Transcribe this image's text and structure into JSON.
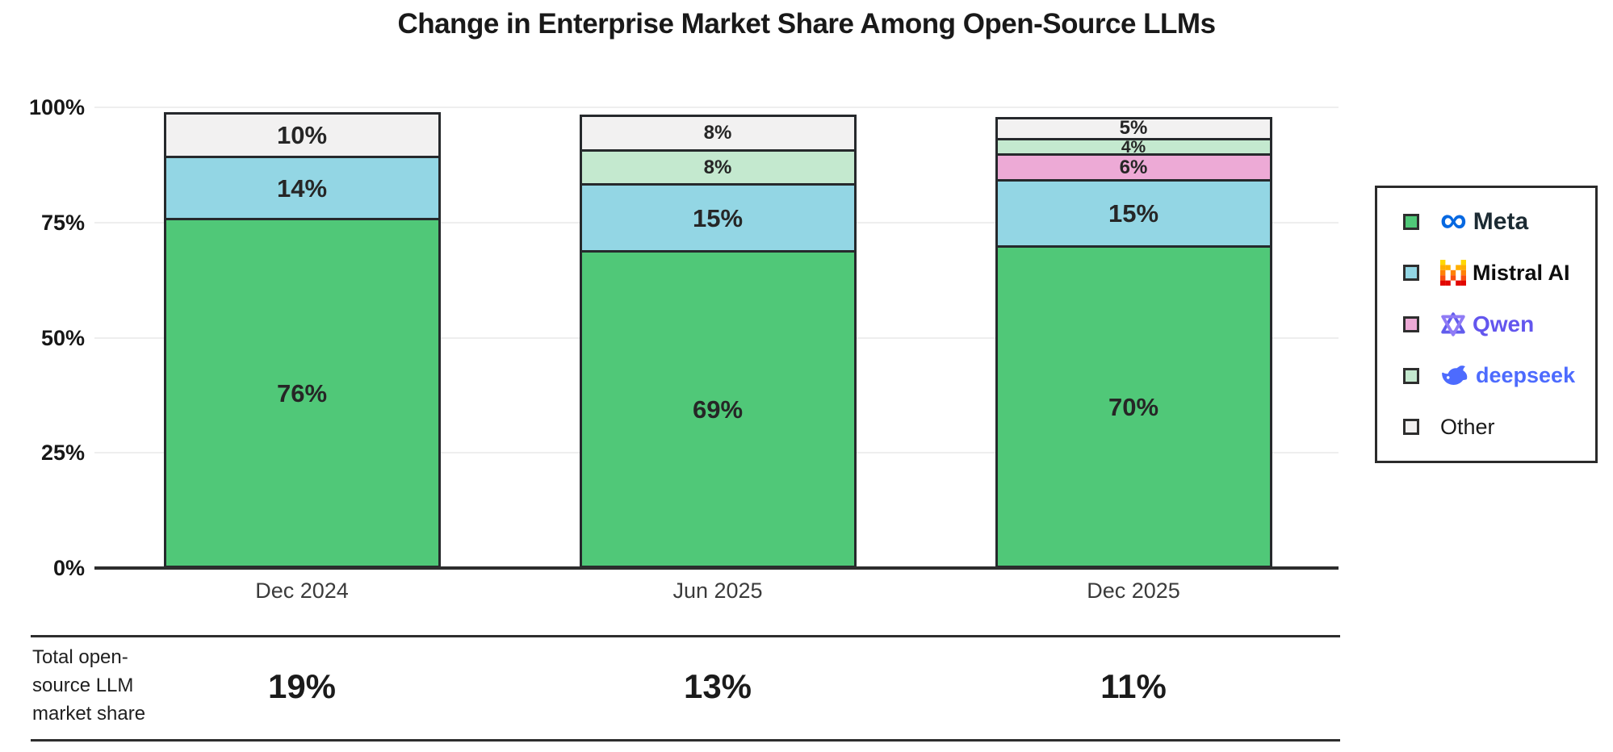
{
  "title": "Change in Enterprise Market Share Among Open-Source LLMs",
  "chart_data": {
    "type": "bar",
    "stacked": true,
    "title": "Change in Enterprise Market Share Among Open-Source LLMs",
    "categories": [
      "Dec 2024",
      "Jun 2025",
      "Dec 2025"
    ],
    "series": [
      {
        "name": "Meta",
        "color": "#50c878",
        "values": [
          76,
          69,
          70
        ]
      },
      {
        "name": "Mistral AI",
        "color": "#93d6e4",
        "values": [
          14,
          15,
          15
        ]
      },
      {
        "name": "Qwen",
        "color": "#edaad6",
        "values": [
          0,
          0,
          6
        ]
      },
      {
        "name": "deepseek",
        "color": "#c4e9cf",
        "values": [
          0,
          8,
          4
        ]
      },
      {
        "name": "Other",
        "color": "#f2f1f1",
        "values": [
          10,
          8,
          5
        ]
      }
    ],
    "value_suffix": "%",
    "ylim": [
      0,
      100
    ],
    "yticks": [
      {
        "label": "0%",
        "value": 0
      },
      {
        "label": "25%",
        "value": 25
      },
      {
        "label": "50%",
        "value": 50
      },
      {
        "label": "75%",
        "value": 75
      },
      {
        "label": "100%",
        "value": 100
      }
    ],
    "grid": true,
    "legend_position": "right"
  },
  "legend": {
    "items": [
      {
        "label": "Meta",
        "swatch": "#50c878",
        "text_color": "#1c2b33",
        "font_size": 30,
        "font_weight": 700,
        "icon": "meta-infinity-icon"
      },
      {
        "label": "Mistral AI",
        "swatch": "#93d6e4",
        "text_color": "#0d0d0d",
        "font_size": 27,
        "font_weight": 800,
        "icon": "mistral-m-icon"
      },
      {
        "label": "Qwen",
        "swatch": "#edaad6",
        "text_color": "#6356ee",
        "font_size": 28,
        "font_weight": 700,
        "icon": "qwen-knot-icon"
      },
      {
        "label": "deepseek",
        "swatch": "#c4e9cf",
        "text_color": "#4d6bfe",
        "font_size": 27,
        "font_weight": 700,
        "icon": "deepseek-whale-icon"
      },
      {
        "label": "Other",
        "swatch": "#f2f1f1",
        "text_color": "#1a1a1a",
        "font_size": 27,
        "font_weight": 400,
        "icon": null
      }
    ]
  },
  "totals_row": {
    "label_lines": [
      "Total open-",
      "source LLM",
      "market share"
    ],
    "values": [
      "19%",
      "13%",
      "11%"
    ]
  }
}
